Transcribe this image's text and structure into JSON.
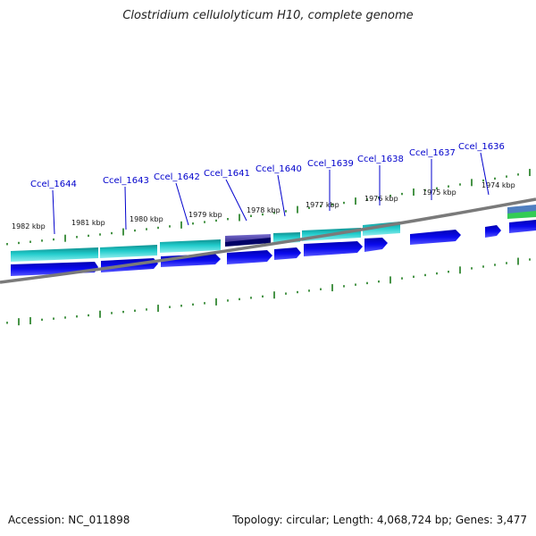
{
  "title": "Clostridium cellulolyticum H10, complete genome",
  "footer": {
    "accession": "Accession: NC_011898",
    "summary": "Topology: circular; Length: 4,068,724 bp; Genes: 3,477"
  },
  "colors": {
    "cds_dark": "#0000dd",
    "cds_teal": "#20c8c8",
    "cds_purple": "#5a4fb0",
    "tick_green": "#1a7a1a",
    "backbone": "#808080",
    "label_blue": "#0000cc"
  },
  "scale_labels": [
    "1982 kbp",
    "1981 kbp",
    "1980 kbp",
    "1979 kbp",
    "1978 kbp",
    "1977 kbp",
    "1976 kbp",
    "1975 kbp",
    "1974 kbp"
  ],
  "gene_labels": [
    "Ccel_1644",
    "Ccel_1643",
    "Ccel_1642",
    "Ccel_1641",
    "Ccel_1640",
    "Ccel_1639",
    "Ccel_1638",
    "Ccel_1637",
    "Ccel_1636"
  ]
}
